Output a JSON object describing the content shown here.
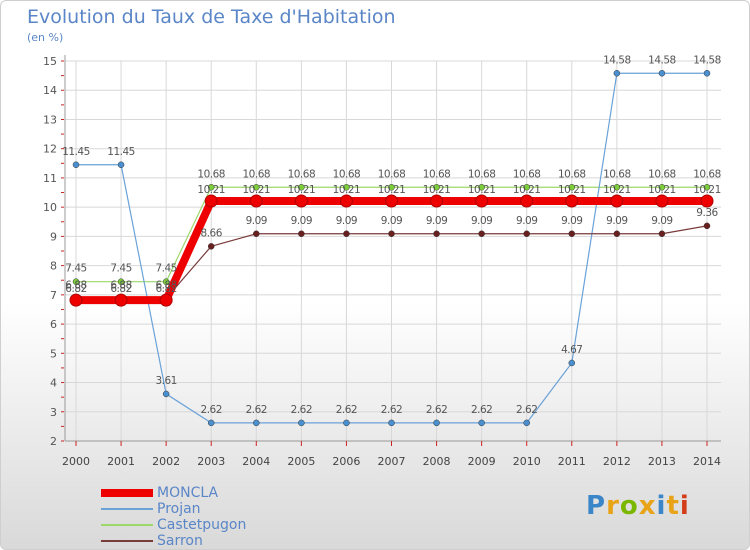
{
  "title": "Evolution du Taux de Taxe d'Habitation",
  "unit": "(en %)",
  "logo": {
    "text": "Proxiti",
    "colors": [
      "#3a86c8",
      "#e8a317",
      "#7ab800",
      "#e8a317",
      "#3a86c8",
      "#e8a317",
      "#d43d1a"
    ]
  },
  "chart_data": {
    "type": "line",
    "x": [
      2000,
      2001,
      2002,
      2003,
      2004,
      2005,
      2006,
      2007,
      2008,
      2009,
      2010,
      2011,
      2012,
      2013,
      2014
    ],
    "ylim": [
      2,
      15
    ],
    "yticks": [
      2,
      3,
      4,
      5,
      6,
      7,
      8,
      9,
      10,
      11,
      12,
      13,
      14,
      15
    ],
    "grid": true,
    "legend_position": "bottom-left",
    "series": [
      {
        "name": "MONCLA",
        "color": "#ee0000",
        "values": [
          6.82,
          6.82,
          6.82,
          10.21,
          10.21,
          10.21,
          10.21,
          10.21,
          10.21,
          10.21,
          10.21,
          10.21,
          10.21,
          10.21,
          10.21
        ],
        "labels": [
          "6.82",
          "6.82",
          "6.82",
          "10.21",
          "10.21",
          "10.21",
          "10.21",
          "10.21",
          "10.21",
          "10.21",
          "10.21",
          "10.21",
          "10.21",
          "10.21",
          "10.21"
        ]
      },
      {
        "name": "Projan",
        "color": "#6aa2d8",
        "values": [
          11.45,
          11.45,
          3.61,
          2.62,
          2.62,
          2.62,
          2.62,
          2.62,
          2.62,
          2.62,
          2.62,
          4.67,
          14.58,
          14.58,
          14.58
        ],
        "labels": [
          "11.45",
          "11.45",
          "3.61",
          "2.62",
          "2.62",
          "2.62",
          "2.62",
          "2.62",
          "2.62",
          "2.62",
          "2.62",
          "4.67",
          "14.58",
          "14.58",
          "14.58"
        ]
      },
      {
        "name": "Castetpugon",
        "color": "#9ed86a",
        "values": [
          7.45,
          7.45,
          7.45,
          10.68,
          10.68,
          10.68,
          10.68,
          10.68,
          10.68,
          10.68,
          10.68,
          10.68,
          10.68,
          10.68,
          10.68
        ],
        "labels": [
          "7.45",
          "7.45",
          "7.45",
          "10.68",
          "10.68",
          "10.68",
          "10.68",
          "10.68",
          "10.68",
          "10.68",
          "10.68",
          "10.68",
          "10.68",
          "10.68",
          "10.68"
        ]
      },
      {
        "name": "Sarron",
        "color": "#7a3b3b",
        "values": [
          6.88,
          6.88,
          6.88,
          8.66,
          9.09,
          9.09,
          9.09,
          9.09,
          9.09,
          9.09,
          9.09,
          9.09,
          9.09,
          9.09,
          9.36
        ],
        "labels": [
          "6.88",
          "6.88",
          "6.88",
          "8.66",
          "9.09",
          "9.09",
          "9.09",
          "9.09",
          "9.09",
          "9.09",
          "9.09",
          "9.09",
          "9.09",
          "9.09",
          "9.36"
        ]
      }
    ]
  }
}
